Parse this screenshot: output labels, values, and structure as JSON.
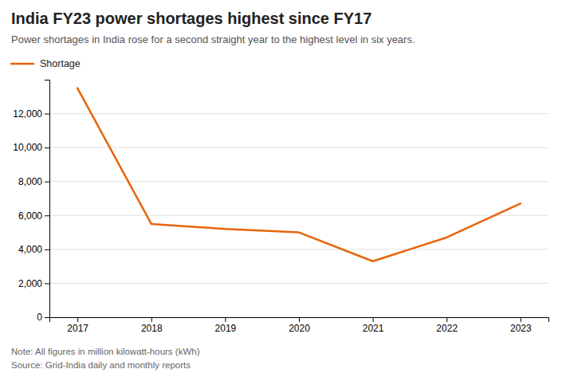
{
  "chart_data": {
    "type": "line",
    "title": "India FY23 power shortages highest since FY17",
    "subtitle": "Power shortages in India rose for a second straight year to the highest level in six years.",
    "notes": [
      "Note: All figures in million kilowatt-hours (kWh)",
      "Source: Grid-India daily and monthly reports"
    ],
    "x": [
      2017,
      2018,
      2019,
      2020,
      2021,
      2022,
      2023
    ],
    "series": [
      {
        "name": "Shortage",
        "color": "#E8640A",
        "values": [
          13500,
          5500,
          5200,
          5000,
          3300,
          4700,
          6700
        ]
      }
    ],
    "xlim": [
      2016.62,
      2023.38
    ],
    "xticks": [
      2017,
      2018,
      2019,
      2020,
      2021,
      2022,
      2023
    ],
    "ylim": [
      0,
      14000
    ],
    "yticks": [
      0,
      {
        "value": 2000,
        "label": "2,000"
      },
      {
        "value": 4000,
        "label": "4,000"
      },
      {
        "value": 6000,
        "label": "6,000"
      },
      {
        "value": 8000,
        "label": "8,000"
      },
      {
        "value": 10000,
        "label": "10,000"
      },
      {
        "value": 12000,
        "label": "12,000"
      }
    ],
    "grid": true,
    "legend": "top-left"
  }
}
